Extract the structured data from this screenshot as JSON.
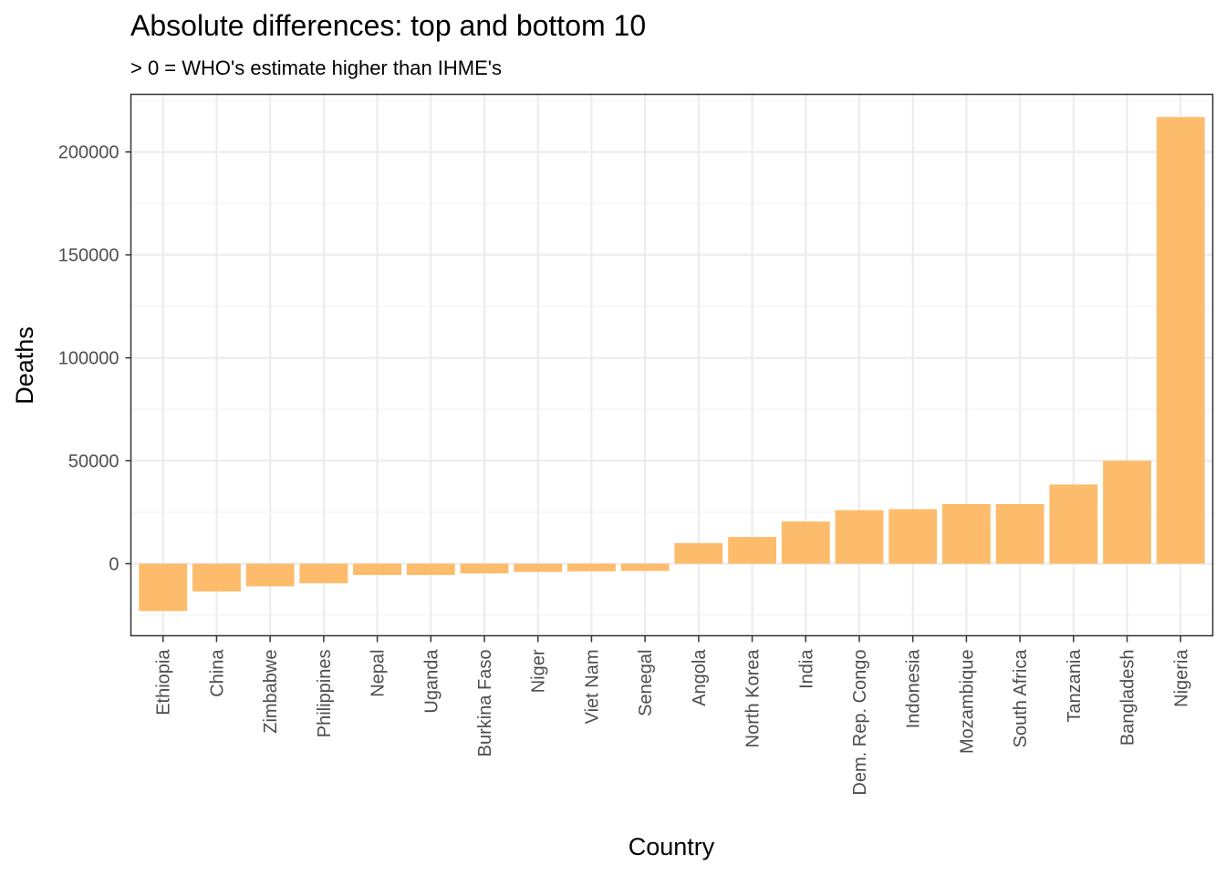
{
  "chart_data": {
    "type": "bar",
    "title": "Absolute differences: top and bottom 10",
    "subtitle": "> 0 = WHO's estimate higher than IHME's",
    "xlabel": "Country",
    "ylabel": "Deaths",
    "categories": [
      "Ethiopia",
      "China",
      "Zimbabwe",
      "Philippines",
      "Nepal",
      "Uganda",
      "Burkina Faso",
      "Niger",
      "Viet Nam",
      "Senegal",
      "Angola",
      "North Korea",
      "India",
      "Dem. Rep. Congo",
      "Indonesia",
      "Mozambique",
      "South Africa",
      "Tanzania",
      "Bangladesh",
      "Nigeria"
    ],
    "values": [
      -23000,
      -13500,
      -11000,
      -9500,
      -5500,
      -5500,
      -4700,
      -4000,
      -3700,
      -3500,
      10000,
      13000,
      20500,
      26000,
      26500,
      29000,
      29000,
      38500,
      50000,
      217000
    ],
    "ylim": [
      -35000,
      228000
    ],
    "yticks": [
      0,
      50000,
      100000,
      150000,
      200000
    ],
    "ytick_labels": [
      "0",
      "50000",
      "100000",
      "150000",
      "200000"
    ],
    "bar_color": "#FDB863",
    "grid": true,
    "legend": "none"
  }
}
